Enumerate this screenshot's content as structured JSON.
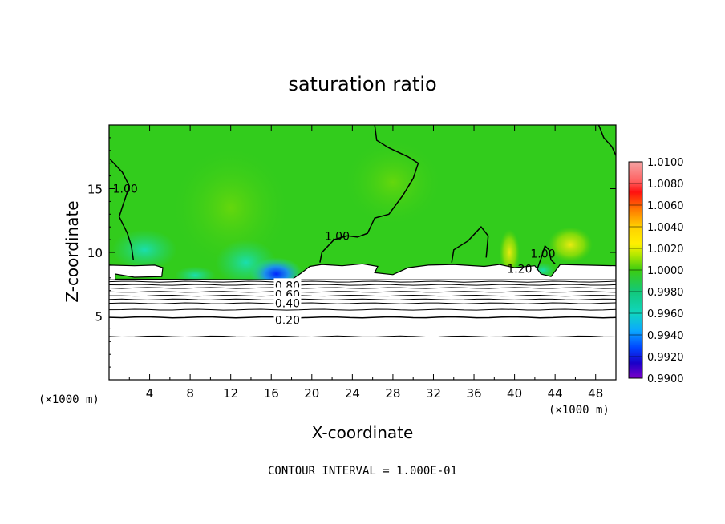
{
  "chart_data": {
    "type": "heatmap",
    "title": "saturation ratio",
    "xlabel": "X-coordinate",
    "ylabel": "Z-coordinate",
    "x_unit_note_left": "(×1000 m)",
    "x_unit_note_right": "(×1000 m)",
    "xlim": [
      0,
      50
    ],
    "ylim": [
      0,
      20
    ],
    "x_ticks": [
      4,
      8,
      12,
      16,
      20,
      24,
      28,
      32,
      36,
      40,
      44,
      48
    ],
    "y_ticks": [
      5,
      10,
      15
    ],
    "footer": "CONTOUR INTERVAL = 1.000E-01",
    "colorbar": {
      "ticks": [
        "1.0100",
        "1.0080",
        "1.0060",
        "1.0040",
        "1.0020",
        "1.0000",
        "0.9980",
        "0.9960",
        "0.9940",
        "0.9920",
        "0.9900"
      ],
      "range": [
        0.99,
        1.01
      ]
    },
    "contour_labels": [
      {
        "text": "1.00",
        "x": 1.6,
        "y": 15.0
      },
      {
        "text": "1.00",
        "x": 22.5,
        "y": 11.3
      },
      {
        "text": "1.20",
        "x": 40.5,
        "y": 8.7
      },
      {
        "text": "1.00",
        "x": 42.8,
        "y": 9.9
      },
      {
        "text": "0.80",
        "x": 17.6,
        "y": 7.4
      },
      {
        "text": "0.60",
        "x": 17.6,
        "y": 6.7
      },
      {
        "text": "0.40",
        "x": 17.6,
        "y": 6.0
      },
      {
        "text": "0.20",
        "x": 17.6,
        "y": 4.7
      }
    ],
    "horizontal_contours_z": [
      3.4,
      4.9,
      5.5,
      6.0,
      6.3,
      6.6,
      6.9,
      7.2,
      7.45,
      7.7
    ],
    "colors": {
      "background_field": "#32cc1c",
      "saturated_boundary": "#ffffff",
      "dry_layer": "#ffffff"
    }
  }
}
